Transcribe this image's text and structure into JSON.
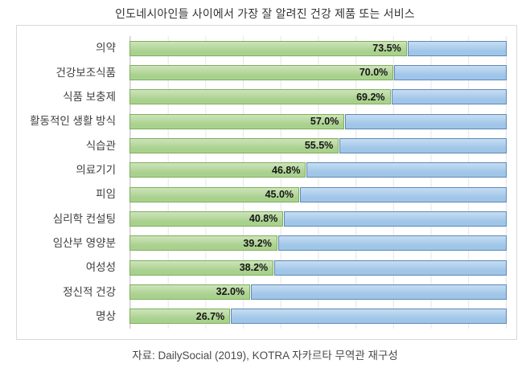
{
  "title": "인도네시아인들 사이에서 가장 잘 알려진 건강 제품 또는 서비스",
  "source": "자료: DailySocial (2019), KOTRA 자카르타 무역관 재구성",
  "chart_data": {
    "type": "bar",
    "orientation": "horizontal",
    "stacked": true,
    "title": "인도네시아인들 사이에서 가장 잘 알려진 건강 제품 또는 서비스",
    "categories": [
      "의약",
      "건강보조식품",
      "식품 보충제",
      "활동적인 생활 방식",
      "식습관",
      "의료기기",
      "피임",
      "심리학 컨설팅",
      "임산부 영양분",
      "여성성",
      "정신적 건강",
      "명상"
    ],
    "values": [
      73.5,
      70.0,
      69.2,
      57.0,
      55.5,
      46.8,
      45.0,
      40.8,
      39.2,
      38.2,
      32.0,
      26.7
    ],
    "value_labels": [
      "73.5%",
      "70.0%",
      "69.2%",
      "57.0%",
      "55.5%",
      "46.8%",
      "45.0%",
      "40.8%",
      "39.2%",
      "38.2%",
      "32.0%",
      "26.7%"
    ],
    "xlim": [
      0,
      100
    ],
    "grid": true,
    "gridline_step_percent": 10,
    "legend": "none",
    "remainder_is_100_minus_value": true,
    "colors": {
      "known_fill": "#a9d18e",
      "known_fill_light": "#cde4ba",
      "known_border": "#7fae5b",
      "remainder_fill": "#9fc5e8",
      "remainder_fill_light": "#c6ddf2",
      "remainder_border": "#5e88b4",
      "gridline": "#e5e5e5",
      "axis": "#cfcfcf",
      "frame": "#d9d9d9",
      "value_label_text": "#161616"
    }
  }
}
